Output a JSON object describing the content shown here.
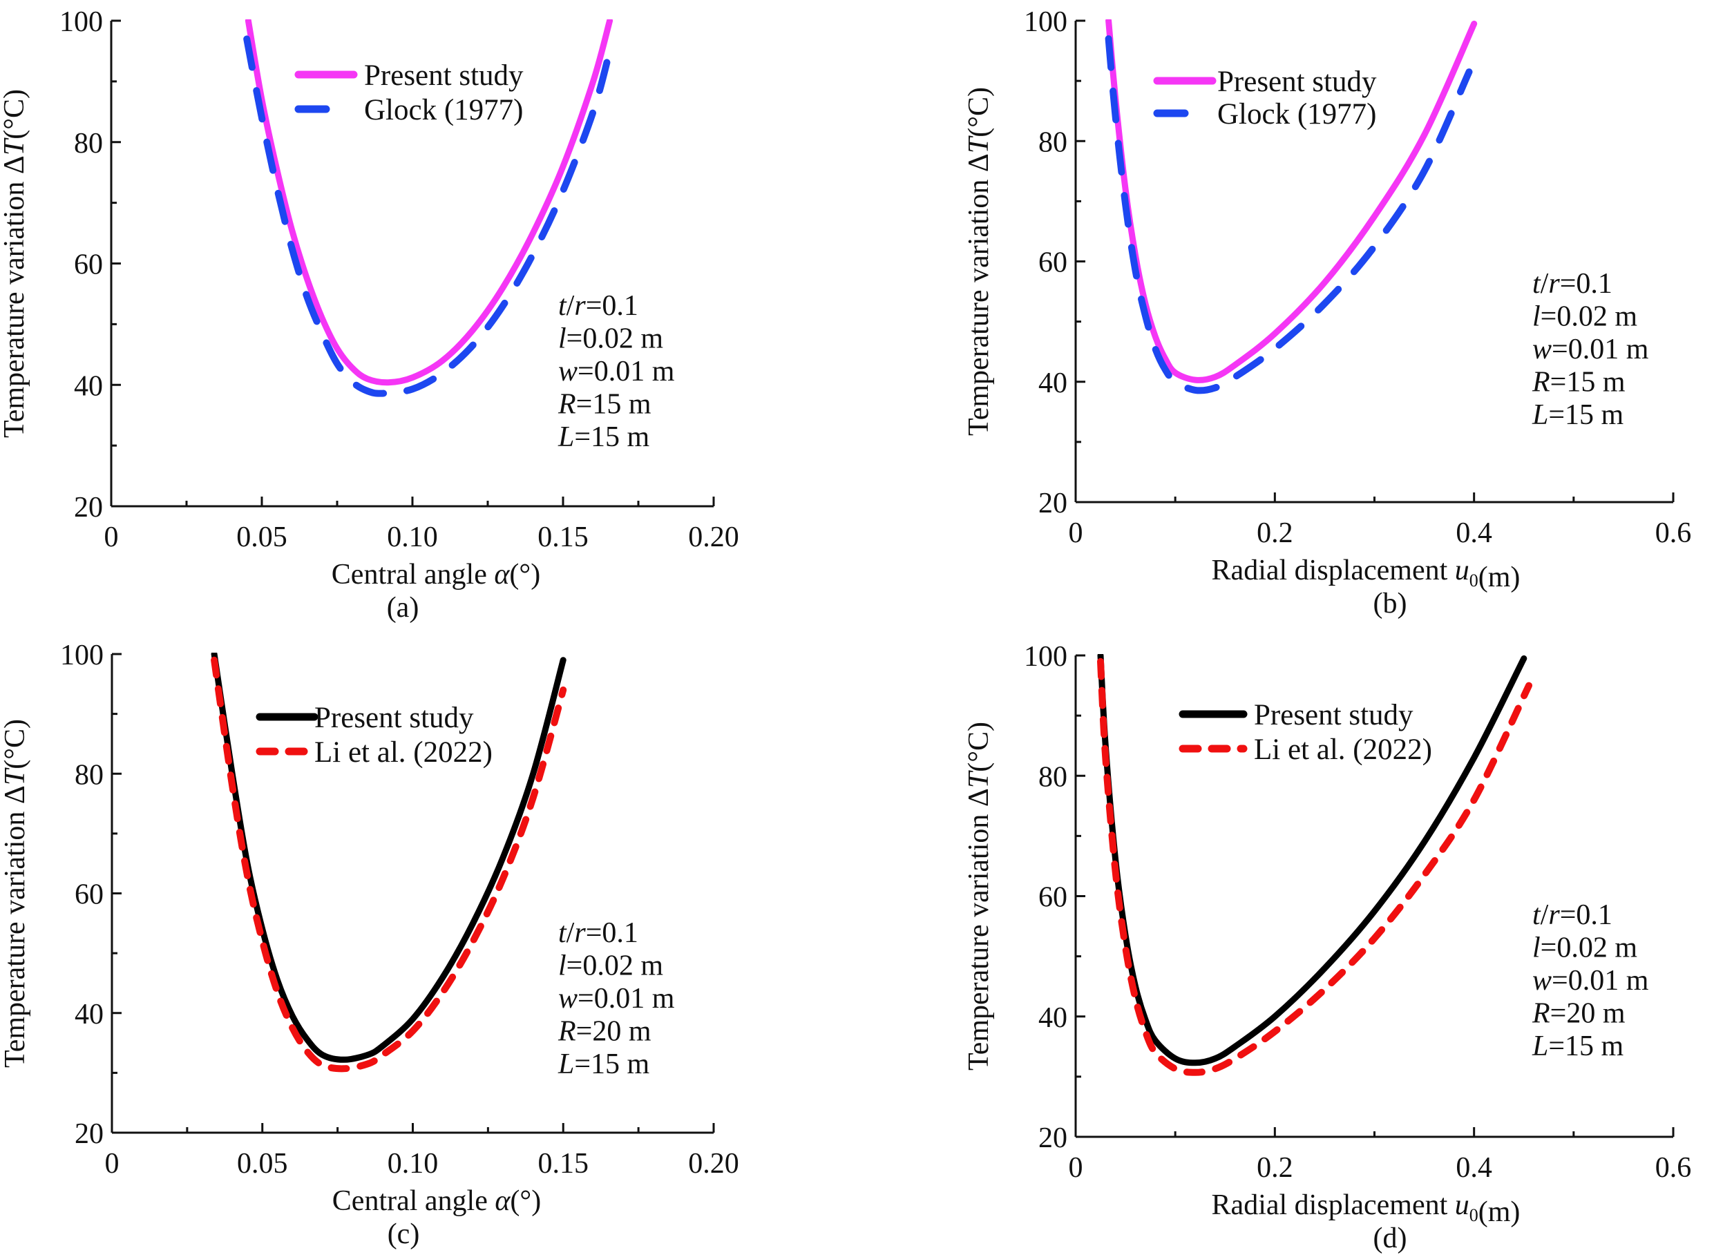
{
  "chart_data": [
    {
      "type": "line",
      "panel_label": "(a)",
      "title": "",
      "xlabel": "Central angle α(°)",
      "xlabel_parts": [
        {
          "t": "Central angle ",
          "i": false
        },
        {
          "t": "α",
          "i": true
        },
        {
          "t": "(°)",
          "i": false
        }
      ],
      "ylabel_parts": [
        {
          "t": "Temperature variation Δ",
          "i": false
        },
        {
          "t": "T",
          "i": true
        },
        {
          "t": "(°C)",
          "i": false
        }
      ],
      "xlim": [
        0,
        0.2
      ],
      "ylim": [
        20,
        100
      ],
      "xticks": [
        0,
        0.05,
        0.1,
        0.15,
        0.2
      ],
      "xtick_labels": [
        "0",
        "0.05",
        "0.10",
        "0.15",
        "0.20"
      ],
      "yticks": [
        20,
        40,
        60,
        80,
        100
      ],
      "ytick_labels": [
        "20",
        "40",
        "60",
        "80",
        "100"
      ],
      "grid": false,
      "legend_position": "top-center",
      "annotation": [
        [
          {
            "t": "t",
            "i": true
          },
          {
            "t": "/",
            "i": false
          },
          {
            "t": "r",
            "i": true
          },
          {
            "t": "=0.1",
            "i": false
          }
        ],
        [
          {
            "t": "l",
            "i": true
          },
          {
            "t": "=0.02 m",
            "i": false
          }
        ],
        [
          {
            "t": "w",
            "i": true
          },
          {
            "t": "=0.01 m",
            "i": false
          }
        ],
        [
          {
            "t": "R",
            "i": true
          },
          {
            "t": "=15 m",
            "i": false
          }
        ],
        [
          {
            "t": "L",
            "i": true
          },
          {
            "t": "=15 m",
            "i": false
          }
        ]
      ],
      "series": [
        {
          "name": "Present study",
          "color": "#F536F5",
          "style": "solid",
          "x": [
            0.0455,
            0.05,
            0.055,
            0.06,
            0.065,
            0.07,
            0.075,
            0.08,
            0.085,
            0.092,
            0.1,
            0.11,
            0.12,
            0.13,
            0.14,
            0.15,
            0.16,
            0.1655
          ],
          "y": [
            100,
            87,
            75.5,
            65.5,
            57.5,
            51,
            46,
            42.8,
            41,
            40.4,
            41.2,
            44,
            49,
            56,
            65,
            76,
            90,
            100
          ]
        },
        {
          "name": "Glock (1977)",
          "color": "#1D47F0",
          "style": "dashed",
          "x": [
            0.045,
            0.05,
            0.055,
            0.06,
            0.065,
            0.07,
            0.075,
            0.08,
            0.085,
            0.09,
            0.1,
            0.11,
            0.12,
            0.13,
            0.14,
            0.15,
            0.16,
            0.1655
          ],
          "y": [
            97,
            84,
            72.5,
            62.5,
            54.5,
            48.5,
            43.5,
            40.5,
            39,
            38.6,
            39.3,
            42,
            46.5,
            53,
            61.5,
            72,
            85,
            95
          ]
        }
      ]
    },
    {
      "type": "line",
      "panel_label": "(b)",
      "title": "",
      "xlabel": "Radial displacement u0(m)",
      "xlabel_parts": [
        {
          "t": "Radial displacement ",
          "i": false
        },
        {
          "t": "u",
          "i": true
        },
        {
          "t": "0",
          "i": false,
          "sub": true
        },
        {
          "t": "(m)",
          "i": false
        }
      ],
      "ylabel_parts": [
        {
          "t": "Temperature variation Δ",
          "i": false
        },
        {
          "t": "T",
          "i": true
        },
        {
          "t": "(°C)",
          "i": false
        }
      ],
      "xlim": [
        0,
        0.6
      ],
      "ylim": [
        20,
        100
      ],
      "xticks": [
        0,
        0.2,
        0.4,
        0.6
      ],
      "xtick_labels": [
        "0",
        "0.2",
        "0.4",
        "0.6"
      ],
      "yticks": [
        20,
        40,
        60,
        80,
        100
      ],
      "ytick_labels": [
        "20",
        "40",
        "60",
        "80",
        "100"
      ],
      "grid": false,
      "legend_position": "top-left",
      "annotation": [
        [
          {
            "t": "t",
            "i": true
          },
          {
            "t": "/",
            "i": false
          },
          {
            "t": "r",
            "i": true
          },
          {
            "t": "=0.1",
            "i": false
          }
        ],
        [
          {
            "t": "l",
            "i": true
          },
          {
            "t": "=0.02 m",
            "i": false
          }
        ],
        [
          {
            "t": "w",
            "i": true
          },
          {
            "t": "=0.01 m",
            "i": false
          }
        ],
        [
          {
            "t": "R",
            "i": true
          },
          {
            "t": "=15 m",
            "i": false
          }
        ],
        [
          {
            "t": "L",
            "i": true
          },
          {
            "t": "=15 m",
            "i": false
          }
        ]
      ],
      "series": [
        {
          "name": "Present study",
          "color": "#F536F5",
          "style": "solid",
          "x": [
            0.033,
            0.04,
            0.05,
            0.06,
            0.07,
            0.08,
            0.09,
            0.1,
            0.12,
            0.14,
            0.16,
            0.2,
            0.25,
            0.3,
            0.35,
            0.4
          ],
          "y": [
            100,
            87,
            72,
            61,
            53,
            47.5,
            43.8,
            41.5,
            40.3,
            40.8,
            42.8,
            48,
            56.5,
            67.5,
            81,
            99.5
          ]
        },
        {
          "name": "Glock (1977)",
          "color": "#1D47F0",
          "style": "dashed",
          "x": [
            0.033,
            0.04,
            0.05,
            0.06,
            0.07,
            0.08,
            0.09,
            0.1,
            0.12,
            0.14,
            0.16,
            0.2,
            0.25,
            0.3,
            0.35,
            0.395
          ],
          "y": [
            97,
            84,
            69.5,
            58.5,
            51,
            45.5,
            42,
            40,
            38.6,
            39,
            40.8,
            45.5,
            53,
            62.5,
            75,
            91.5
          ]
        }
      ]
    },
    {
      "type": "line",
      "panel_label": "(c)",
      "title": "",
      "xlabel": "Central angle α(°)",
      "xlabel_parts": [
        {
          "t": "Central angle ",
          "i": false
        },
        {
          "t": "α",
          "i": true
        },
        {
          "t": "(°)",
          "i": false
        }
      ],
      "ylabel_parts": [
        {
          "t": "Temperature variation Δ",
          "i": false
        },
        {
          "t": "T",
          "i": true
        },
        {
          "t": "(°C)",
          "i": false
        }
      ],
      "xlim": [
        0,
        0.2
      ],
      "ylim": [
        20,
        100
      ],
      "xticks": [
        0,
        0.05,
        0.1,
        0.15,
        0.2
      ],
      "xtick_labels": [
        "0",
        "0.05",
        "0.10",
        "0.15",
        "0.20"
      ],
      "yticks": [
        20,
        40,
        60,
        80,
        100
      ],
      "ytick_labels": [
        "20",
        "40",
        "60",
        "80",
        "100"
      ],
      "grid": false,
      "legend_position": "top-center",
      "annotation": [
        [
          {
            "t": "t",
            "i": true
          },
          {
            "t": "/",
            "i": false
          },
          {
            "t": "r",
            "i": true
          },
          {
            "t": "=0.1",
            "i": false
          }
        ],
        [
          {
            "t": "l",
            "i": true
          },
          {
            "t": "=0.02 m",
            "i": false
          }
        ],
        [
          {
            "t": "w",
            "i": true
          },
          {
            "t": "=0.01 m",
            "i": false
          }
        ],
        [
          {
            "t": "R",
            "i": true
          },
          {
            "t": "=20 m",
            "i": false
          }
        ],
        [
          {
            "t": "L",
            "i": true
          },
          {
            "t": "=15 m",
            "i": false
          }
        ]
      ],
      "series": [
        {
          "name": "Present study",
          "color": "#000000",
          "style": "solid",
          "x": [
            0.034,
            0.04,
            0.045,
            0.05,
            0.055,
            0.06,
            0.065,
            0.07,
            0.077,
            0.085,
            0.09,
            0.1,
            0.11,
            0.12,
            0.13,
            0.14,
            0.15
          ],
          "y": [
            100,
            80,
            65,
            54,
            45.5,
            39.5,
            35.5,
            33,
            32.2,
            33,
            34.5,
            39,
            46,
            55,
            66,
            80,
            99
          ]
        },
        {
          "name": "Li et al. (2022)",
          "color": "#F01010",
          "style": "dashed",
          "x": [
            0.034,
            0.04,
            0.045,
            0.05,
            0.055,
            0.06,
            0.065,
            0.07,
            0.077,
            0.085,
            0.09,
            0.1,
            0.11,
            0.12,
            0.13,
            0.14,
            0.15
          ],
          "y": [
            99,
            78,
            63,
            52,
            43.5,
            37.5,
            33.5,
            31.3,
            30.7,
            31.5,
            33,
            37,
            43.5,
            52,
            62.5,
            76,
            94
          ]
        }
      ]
    },
    {
      "type": "line",
      "panel_label": "(d)",
      "title": "",
      "xlabel": "Radial displacement u0(m)",
      "xlabel_parts": [
        {
          "t": "Radial displacement ",
          "i": false
        },
        {
          "t": "u",
          "i": true
        },
        {
          "t": "0",
          "i": false,
          "sub": true
        },
        {
          "t": "(m)",
          "i": false
        }
      ],
      "ylabel_parts": [
        {
          "t": "Temperature variation Δ",
          "i": false
        },
        {
          "t": "T",
          "i": true
        },
        {
          "t": "(°C)",
          "i": false
        }
      ],
      "xlim": [
        0,
        0.6
      ],
      "ylim": [
        20,
        100
      ],
      "xticks": [
        0,
        0.2,
        0.4,
        0.6
      ],
      "xtick_labels": [
        "0",
        "0.2",
        "0.4",
        "0.6"
      ],
      "yticks": [
        20,
        40,
        60,
        80,
        100
      ],
      "ytick_labels": [
        "20",
        "40",
        "60",
        "80",
        "100"
      ],
      "grid": false,
      "legend_position": "top-left",
      "annotation": [
        [
          {
            "t": "t",
            "i": true
          },
          {
            "t": "/",
            "i": false
          },
          {
            "t": "r",
            "i": true
          },
          {
            "t": "=0.1",
            "i": false
          }
        ],
        [
          {
            "t": "l",
            "i": true
          },
          {
            "t": "=0.02 m",
            "i": false
          }
        ],
        [
          {
            "t": "w",
            "i": true
          },
          {
            "t": "=0.01 m",
            "i": false
          }
        ],
        [
          {
            "t": "R",
            "i": true
          },
          {
            "t": "=20 m",
            "i": false
          }
        ],
        [
          {
            "t": "L",
            "i": true
          },
          {
            "t": "=15 m",
            "i": false
          }
        ]
      ],
      "series": [
        {
          "name": "Present study",
          "color": "#000000",
          "style": "solid",
          "x": [
            0.025,
            0.03,
            0.04,
            0.05,
            0.06,
            0.07,
            0.08,
            0.1,
            0.12,
            0.14,
            0.16,
            0.2,
            0.25,
            0.3,
            0.35,
            0.4,
            0.45
          ],
          "y": [
            100,
            85,
            66,
            53.5,
            45,
            39.5,
            36,
            33,
            32.3,
            33,
            35,
            40,
            48,
            57.5,
            69,
            83,
            99.5
          ]
        },
        {
          "name": "Li et al. (2022)",
          "color": "#F01010",
          "style": "dashed",
          "x": [
            0.025,
            0.03,
            0.04,
            0.05,
            0.06,
            0.07,
            0.08,
            0.1,
            0.12,
            0.14,
            0.16,
            0.2,
            0.25,
            0.3,
            0.35,
            0.4,
            0.455
          ],
          "y": [
            99,
            83,
            64,
            51.5,
            43,
            37.5,
            34,
            31.3,
            30.7,
            31.3,
            33,
            37.5,
            44.5,
            53,
            63.5,
            76,
            95
          ]
        }
      ]
    }
  ]
}
